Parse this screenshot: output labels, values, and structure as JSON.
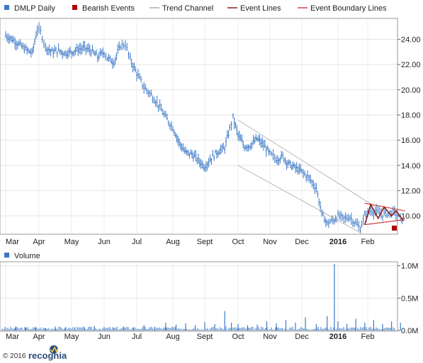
{
  "chart_data": [
    {
      "type": "line",
      "title": "",
      "legend": {
        "placement": "top",
        "items": [
          {
            "label": "DMLP Daily",
            "marker": "square",
            "color": "#3a78c8"
          },
          {
            "label": "Bearish Events",
            "marker": "square",
            "color": "#b00000"
          },
          {
            "label": "Trend Channel",
            "marker": "line",
            "color": "#aaaaaa"
          },
          {
            "label": "Event Lines",
            "marker": "line",
            "color": "#8b1a1a"
          },
          {
            "label": "Event Boundary Lines",
            "marker": "line",
            "color": "#d04040"
          }
        ]
      },
      "x_months": [
        "Mar",
        "Apr",
        "May",
        "Jun",
        "Jul",
        "Aug",
        "Sept",
        "Oct",
        "Nov",
        "Dec",
        "2016",
        "Feb"
      ],
      "y_ticks": [
        "10.00",
        "12.00",
        "14.00",
        "16.00",
        "18.00",
        "20.00",
        "22.00",
        "24.00"
      ],
      "ylim": [
        8.6,
        25.6
      ],
      "grid": true,
      "series": [
        {
          "name": "DMLP Daily",
          "color": "#3a78c8",
          "points": [
            [
              0,
              24.3
            ],
            [
              0.2,
              24.0
            ],
            [
              0.4,
              23.6
            ],
            [
              0.6,
              23.2
            ],
            [
              0.8,
              22.9
            ],
            [
              0.95,
              24.8
            ],
            [
              1.05,
              24.6
            ],
            [
              1.2,
              23.4
            ],
            [
              1.4,
              23.0
            ],
            [
              1.6,
              23.1
            ],
            [
              1.8,
              22.9
            ],
            [
              2.0,
              23.0
            ],
            [
              2.2,
              23.2
            ],
            [
              2.4,
              23.3
            ],
            [
              2.6,
              23.1
            ],
            [
              2.8,
              22.6
            ],
            [
              3.0,
              23.0
            ],
            [
              3.1,
              22.5
            ],
            [
              3.3,
              22.2
            ],
            [
              3.5,
              23.5
            ],
            [
              3.65,
              23.6
            ],
            [
              3.8,
              22.4
            ],
            [
              4.0,
              21.3
            ],
            [
              4.2,
              20.2
            ],
            [
              4.4,
              19.6
            ],
            [
              4.6,
              18.8
            ],
            [
              4.8,
              17.8
            ],
            [
              5.0,
              17.0
            ],
            [
              5.2,
              15.8
            ],
            [
              5.4,
              15.0
            ],
            [
              5.6,
              14.9
            ],
            [
              5.8,
              14.4
            ],
            [
              6.0,
              13.9
            ],
            [
              6.2,
              14.6
            ],
            [
              6.4,
              15.1
            ],
            [
              6.6,
              15.4
            ],
            [
              6.75,
              16.9
            ],
            [
              6.85,
              17.8
            ],
            [
              7.0,
              16.4
            ],
            [
              7.2,
              15.5
            ],
            [
              7.4,
              15.6
            ],
            [
              7.6,
              16.1
            ],
            [
              7.8,
              15.6
            ],
            [
              8.0,
              14.9
            ],
            [
              8.2,
              14.5
            ],
            [
              8.4,
              14.7
            ],
            [
              8.6,
              14.1
            ],
            [
              8.8,
              13.8
            ],
            [
              9.0,
              13.5
            ],
            [
              9.2,
              13.0
            ],
            [
              9.4,
              12.2
            ],
            [
              9.55,
              10.2
            ],
            [
              9.7,
              9.4
            ],
            [
              9.9,
              9.7
            ],
            [
              10.0,
              10.0
            ],
            [
              10.2,
              9.8
            ],
            [
              10.4,
              9.9
            ],
            [
              10.6,
              9.4
            ],
            [
              10.75,
              9.0
            ],
            [
              10.9,
              10.0
            ],
            [
              11.1,
              10.4
            ],
            [
              11.3,
              10.3
            ],
            [
              11.5,
              10.1
            ],
            [
              11.7,
              10.2
            ],
            [
              11.9,
              10.3
            ],
            [
              12.05,
              9.9
            ],
            [
              12.2,
              9.6
            ]
          ]
        }
      ],
      "bearish_event_value": 9.0,
      "trend_channel": {
        "upper": [
          [
            7.0,
            17.6
          ],
          [
            11.2,
            10.8
          ]
        ],
        "lower": [
          [
            7.0,
            14.0
          ],
          [
            10.8,
            8.6
          ]
        ]
      },
      "event_lines": [
        [
          10.9,
          9.3
        ],
        [
          11.1,
          10.9
        ],
        [
          11.35,
          9.8
        ],
        [
          11.55,
          10.7
        ],
        [
          11.8,
          10.0
        ],
        [
          11.95,
          10.4
        ],
        [
          12.2,
          9.6
        ]
      ],
      "event_boundary_lines": {
        "upper": [
          [
            10.9,
            11.0
          ],
          [
            12.25,
            10.4
          ]
        ],
        "lower": [
          [
            10.9,
            9.3
          ],
          [
            12.25,
            9.7
          ]
        ]
      }
    },
    {
      "type": "bar",
      "title": "",
      "legend": {
        "items": [
          {
            "label": "Volume",
            "marker": "square",
            "color": "#3a78c8"
          }
        ]
      },
      "x_months": [
        "Mar",
        "Apr",
        "May",
        "Jun",
        "Jul",
        "Aug",
        "Sept",
        "Oct",
        "Nov",
        "Dec",
        "2016",
        "Feb"
      ],
      "y_ticks": [
        "0.0M",
        "0.5M",
        "1.0M"
      ],
      "ylim": [
        0,
        1.05
      ],
      "series": [
        {
          "name": "Volume",
          "color": "#3a78c8",
          "x": [
            0.3,
            0.6,
            0.9,
            1.2,
            1.5,
            1.8,
            2.1,
            2.4,
            2.7,
            3.0,
            3.3,
            3.6,
            3.9,
            4.2,
            4.5,
            4.8,
            5.1,
            5.4,
            5.7,
            6.0,
            6.3,
            6.6,
            6.8,
            7.0,
            7.3,
            7.6,
            7.9,
            8.2,
            8.5,
            8.8,
            9.1,
            9.4,
            9.7,
            9.9,
            10.0,
            10.3,
            10.6,
            10.9,
            11.2,
            11.5,
            11.8,
            12.1
          ],
          "values": [
            0.06,
            0.04,
            0.05,
            0.03,
            0.06,
            0.04,
            0.05,
            0.04,
            0.07,
            0.05,
            0.04,
            0.06,
            0.05,
            0.08,
            0.06,
            0.12,
            0.09,
            0.11,
            0.08,
            0.13,
            0.1,
            0.3,
            0.12,
            0.1,
            0.08,
            0.09,
            0.14,
            0.11,
            0.16,
            0.12,
            0.2,
            0.1,
            0.22,
            1.03,
            0.14,
            0.1,
            0.18,
            0.12,
            0.16,
            0.1,
            0.14,
            0.12
          ]
        }
      ]
    }
  ],
  "footer": {
    "copyright": "© 2016",
    "brand": "recognia"
  }
}
